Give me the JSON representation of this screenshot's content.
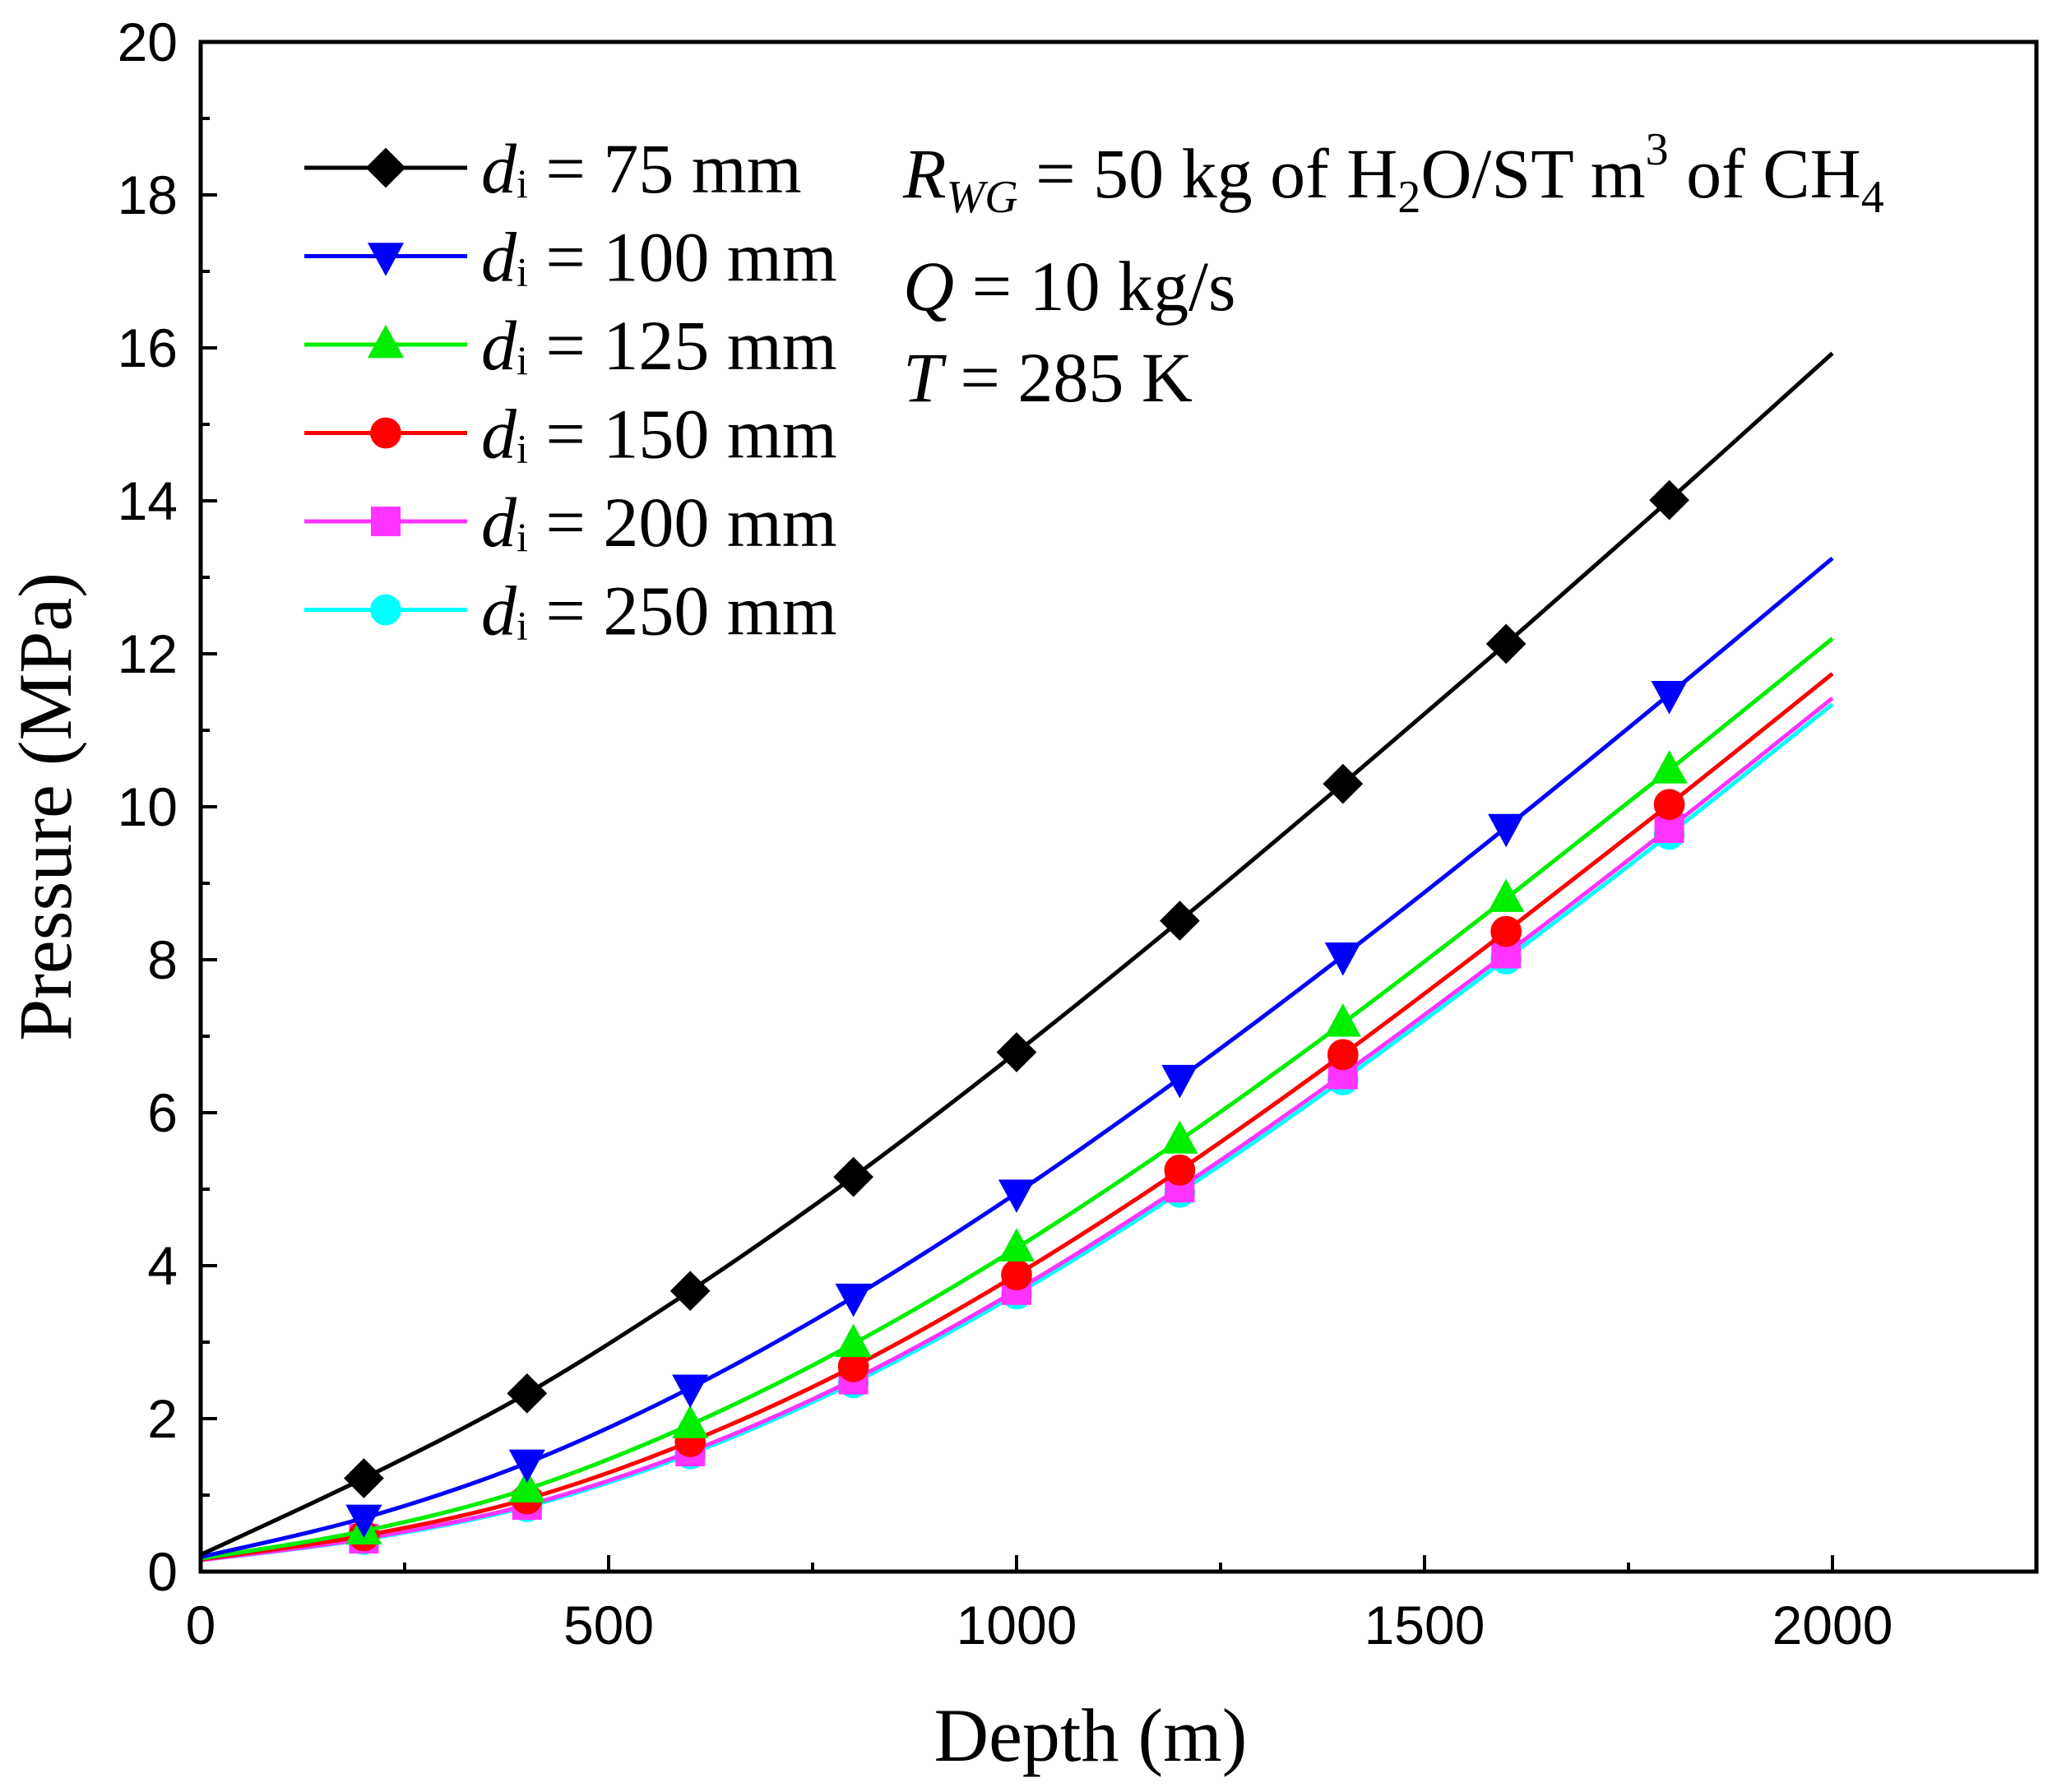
{
  "chart_data": {
    "type": "line",
    "title": "",
    "xlabel": "Depth (m)",
    "ylabel": "Pressure (MPa)",
    "xlim": [
      0,
      2250
    ],
    "ylim": [
      0,
      20
    ],
    "xticks": [
      0,
      500,
      1000,
      1500,
      2000
    ],
    "yticks": [
      0,
      2,
      4,
      6,
      8,
      10,
      12,
      14,
      16,
      18,
      20
    ],
    "grid": false,
    "legend_position": "top-left",
    "x": [
      0,
      200,
      400,
      600,
      800,
      1000,
      1200,
      1400,
      1600,
      1800,
      2000
    ],
    "series": [
      {
        "name_var": "d",
        "name_sub": "i",
        "name_rest": " = 75 mm",
        "color": "#000000",
        "marker": "diamond",
        "values": [
          0.22,
          1.22,
          2.33,
          3.67,
          5.16,
          6.79,
          8.51,
          10.3,
          12.13,
          14.01,
          15.93
        ]
      },
      {
        "name_var": "d",
        "name_sub": "i",
        "name_rest": " = 100 mm",
        "color": "#0000ff",
        "marker": "triangle-down",
        "values": [
          0.19,
          0.7,
          1.42,
          2.4,
          3.59,
          4.95,
          6.45,
          8.05,
          9.73,
          11.47,
          13.25
        ]
      },
      {
        "name_var": "d",
        "name_sub": "i",
        "name_rest": " = 125 mm",
        "color": "#00ee00",
        "marker": "triangle-up",
        "values": [
          0.17,
          0.53,
          1.08,
          1.92,
          2.98,
          4.23,
          5.64,
          7.17,
          8.8,
          10.48,
          12.2
        ]
      },
      {
        "name_var": "d",
        "name_sub": "i",
        "name_rest": " = 150 mm",
        "color": "#ff0000",
        "marker": "circle",
        "values": [
          0.16,
          0.47,
          0.95,
          1.7,
          2.68,
          3.88,
          5.25,
          6.76,
          8.37,
          10.03,
          11.74
        ]
      },
      {
        "name_var": "d",
        "name_sub": "i",
        "name_rest": " = 200 mm",
        "color": "#ff33ff",
        "marker": "square",
        "values": [
          0.15,
          0.43,
          0.87,
          1.57,
          2.51,
          3.68,
          5.02,
          6.5,
          8.08,
          9.72,
          11.42
        ]
      },
      {
        "name_var": "d",
        "name_sub": "i",
        "name_rest": " = 250 mm",
        "color": "#00ffff",
        "marker": "circle",
        "values": [
          0.15,
          0.42,
          0.85,
          1.54,
          2.47,
          3.63,
          4.96,
          6.43,
          8.01,
          9.64,
          11.34
        ]
      }
    ],
    "annotations": {
      "rwg_var": "R",
      "rwg_sub": "WG",
      "rwg_text1": " = 50 kg of H",
      "rwg_sub2": "2",
      "rwg_text2": "O/ST m",
      "rwg_sup": "3",
      "rwg_text3": " of CH",
      "rwg_sub3": "4",
      "q_var": "Q",
      "q_text": " = 10 kg/s",
      "t_var": "T",
      "t_text": " = 285 K"
    }
  }
}
